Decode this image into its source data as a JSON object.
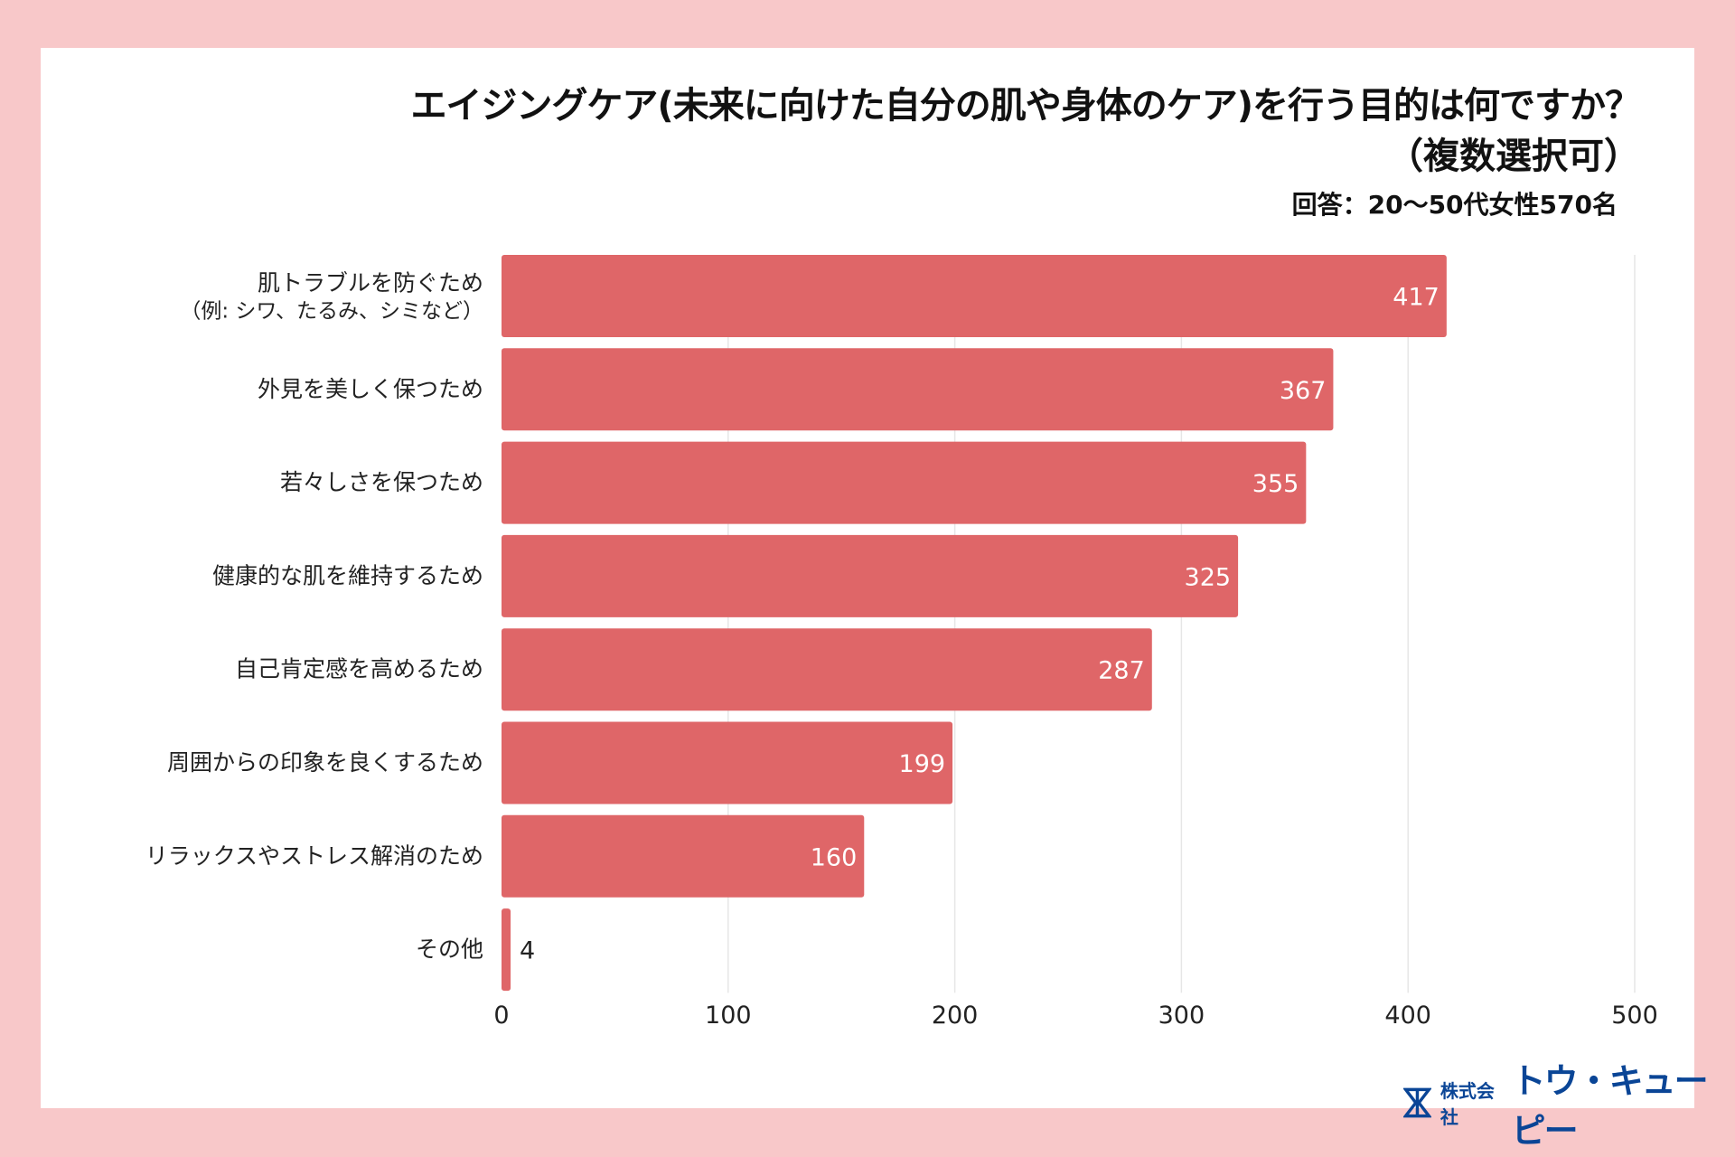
{
  "title": "エイジングケア(未来に向けた自分の肌や身体のケア)を行う目的は何ですか？",
  "title_line2": "（複数選択可）",
  "subtitle": "回答：20〜50代女性570名",
  "colors": {
    "background": "#f8c8c9",
    "bar": "#df6668",
    "grid": "#e6e6e6"
  },
  "logo": {
    "company_prefix": "株式会社",
    "company_name": "トウ・キューピー",
    "icon": "hourglass-logo-icon"
  },
  "chart_data": {
    "type": "bar",
    "orientation": "horizontal",
    "categories": [
      [
        "肌トラブルを防ぐため",
        "（例: シワ、たるみ、シミなど）"
      ],
      [
        "外見を美しく保つため"
      ],
      [
        "若々しさを保つため"
      ],
      [
        "健康的な肌を維持するため"
      ],
      [
        "自己肯定感を高めるため"
      ],
      [
        "周囲からの印象を良くするため"
      ],
      [
        "リラックスやストレス解消のため"
      ],
      [
        "その他"
      ]
    ],
    "values": [
      417,
      367,
      355,
      325,
      287,
      199,
      160,
      4
    ],
    "xlim": [
      0,
      500
    ],
    "xticks": [
      0,
      100,
      200,
      300,
      400,
      500
    ],
    "grid": true,
    "title": "エイジングケア(未来に向けた自分の肌や身体のケア)を行う目的は何ですか？（複数選択可）"
  }
}
